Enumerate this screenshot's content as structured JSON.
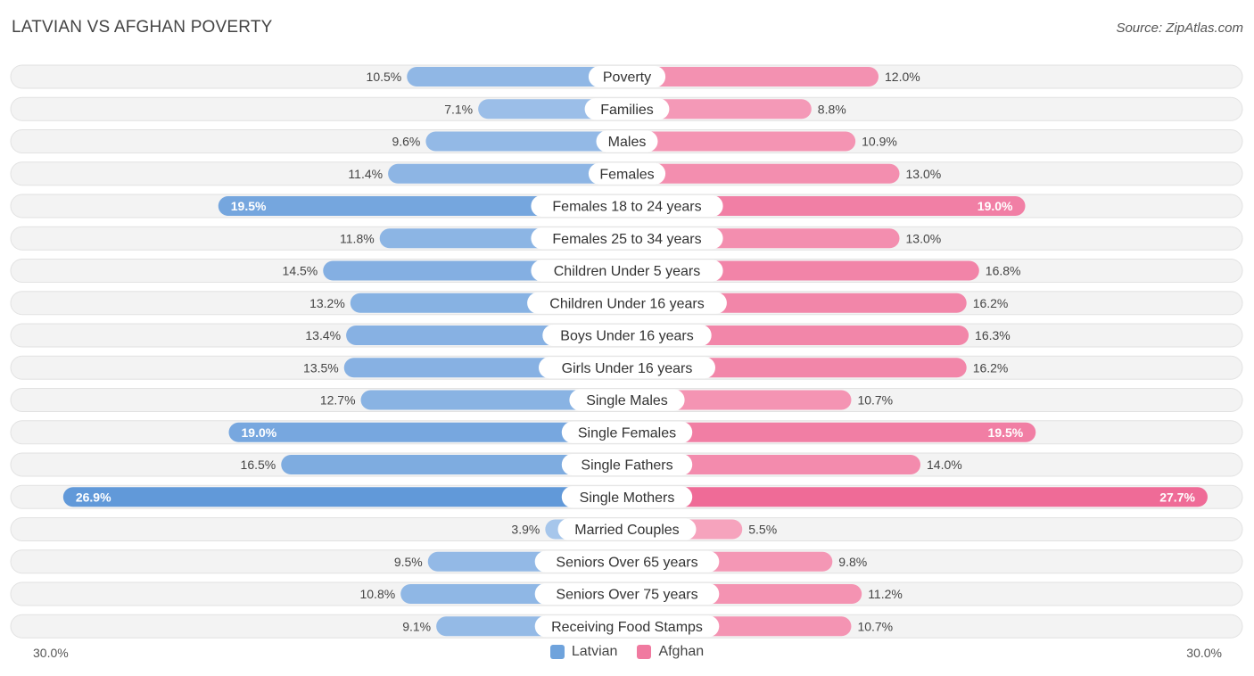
{
  "header": {
    "title": "Latvian vs Afghan Poverty",
    "source": "Source: ZipAtlas.com"
  },
  "axis": {
    "left_label": "30.0%",
    "right_label": "30.0%"
  },
  "legend": [
    {
      "name": "Latvian",
      "color": "#6fa3dc"
    },
    {
      "name": "Afghan",
      "color": "#f07aa0"
    }
  ],
  "chart_data": {
    "type": "bar",
    "orientation": "horizontal-diverging",
    "title": "Latvian vs Afghan Poverty",
    "xlim": [
      -30,
      30
    ],
    "unit": "%",
    "categories": [
      "Poverty",
      "Families",
      "Males",
      "Females",
      "Females 18 to 24 years",
      "Females 25 to 34 years",
      "Children Under 5 years",
      "Children Under 16 years",
      "Boys Under 16 years",
      "Girls Under 16 years",
      "Single Males",
      "Single Females",
      "Single Fathers",
      "Single Mothers",
      "Married Couples",
      "Seniors Over 65 years",
      "Seniors Over 75 years",
      "Receiving Food Stamps"
    ],
    "series": [
      {
        "name": "Latvian",
        "values": [
          10.5,
          7.1,
          9.6,
          11.4,
          19.5,
          11.8,
          14.5,
          13.2,
          13.4,
          13.5,
          12.7,
          19.0,
          16.5,
          26.9,
          3.9,
          9.5,
          10.8,
          9.1
        ],
        "labels": [
          "10.5%",
          "7.1%",
          "9.6%",
          "11.4%",
          "19.5%",
          "11.8%",
          "14.5%",
          "13.2%",
          "13.4%",
          "13.5%",
          "12.7%",
          "19.0%",
          "16.5%",
          "26.9%",
          "3.9%",
          "9.5%",
          "10.8%",
          "9.1%"
        ]
      },
      {
        "name": "Afghan",
        "values": [
          12.0,
          8.8,
          10.9,
          13.0,
          19.0,
          13.0,
          16.8,
          16.2,
          16.3,
          16.2,
          10.7,
          19.5,
          14.0,
          27.7,
          5.5,
          9.8,
          11.2,
          10.7
        ],
        "labels": [
          "12.0%",
          "8.8%",
          "10.9%",
          "13.0%",
          "19.0%",
          "13.0%",
          "16.8%",
          "16.2%",
          "16.3%",
          "16.2%",
          "10.7%",
          "19.5%",
          "14.0%",
          "27.7%",
          "5.5%",
          "9.8%",
          "11.2%",
          "10.7%"
        ]
      }
    ]
  }
}
